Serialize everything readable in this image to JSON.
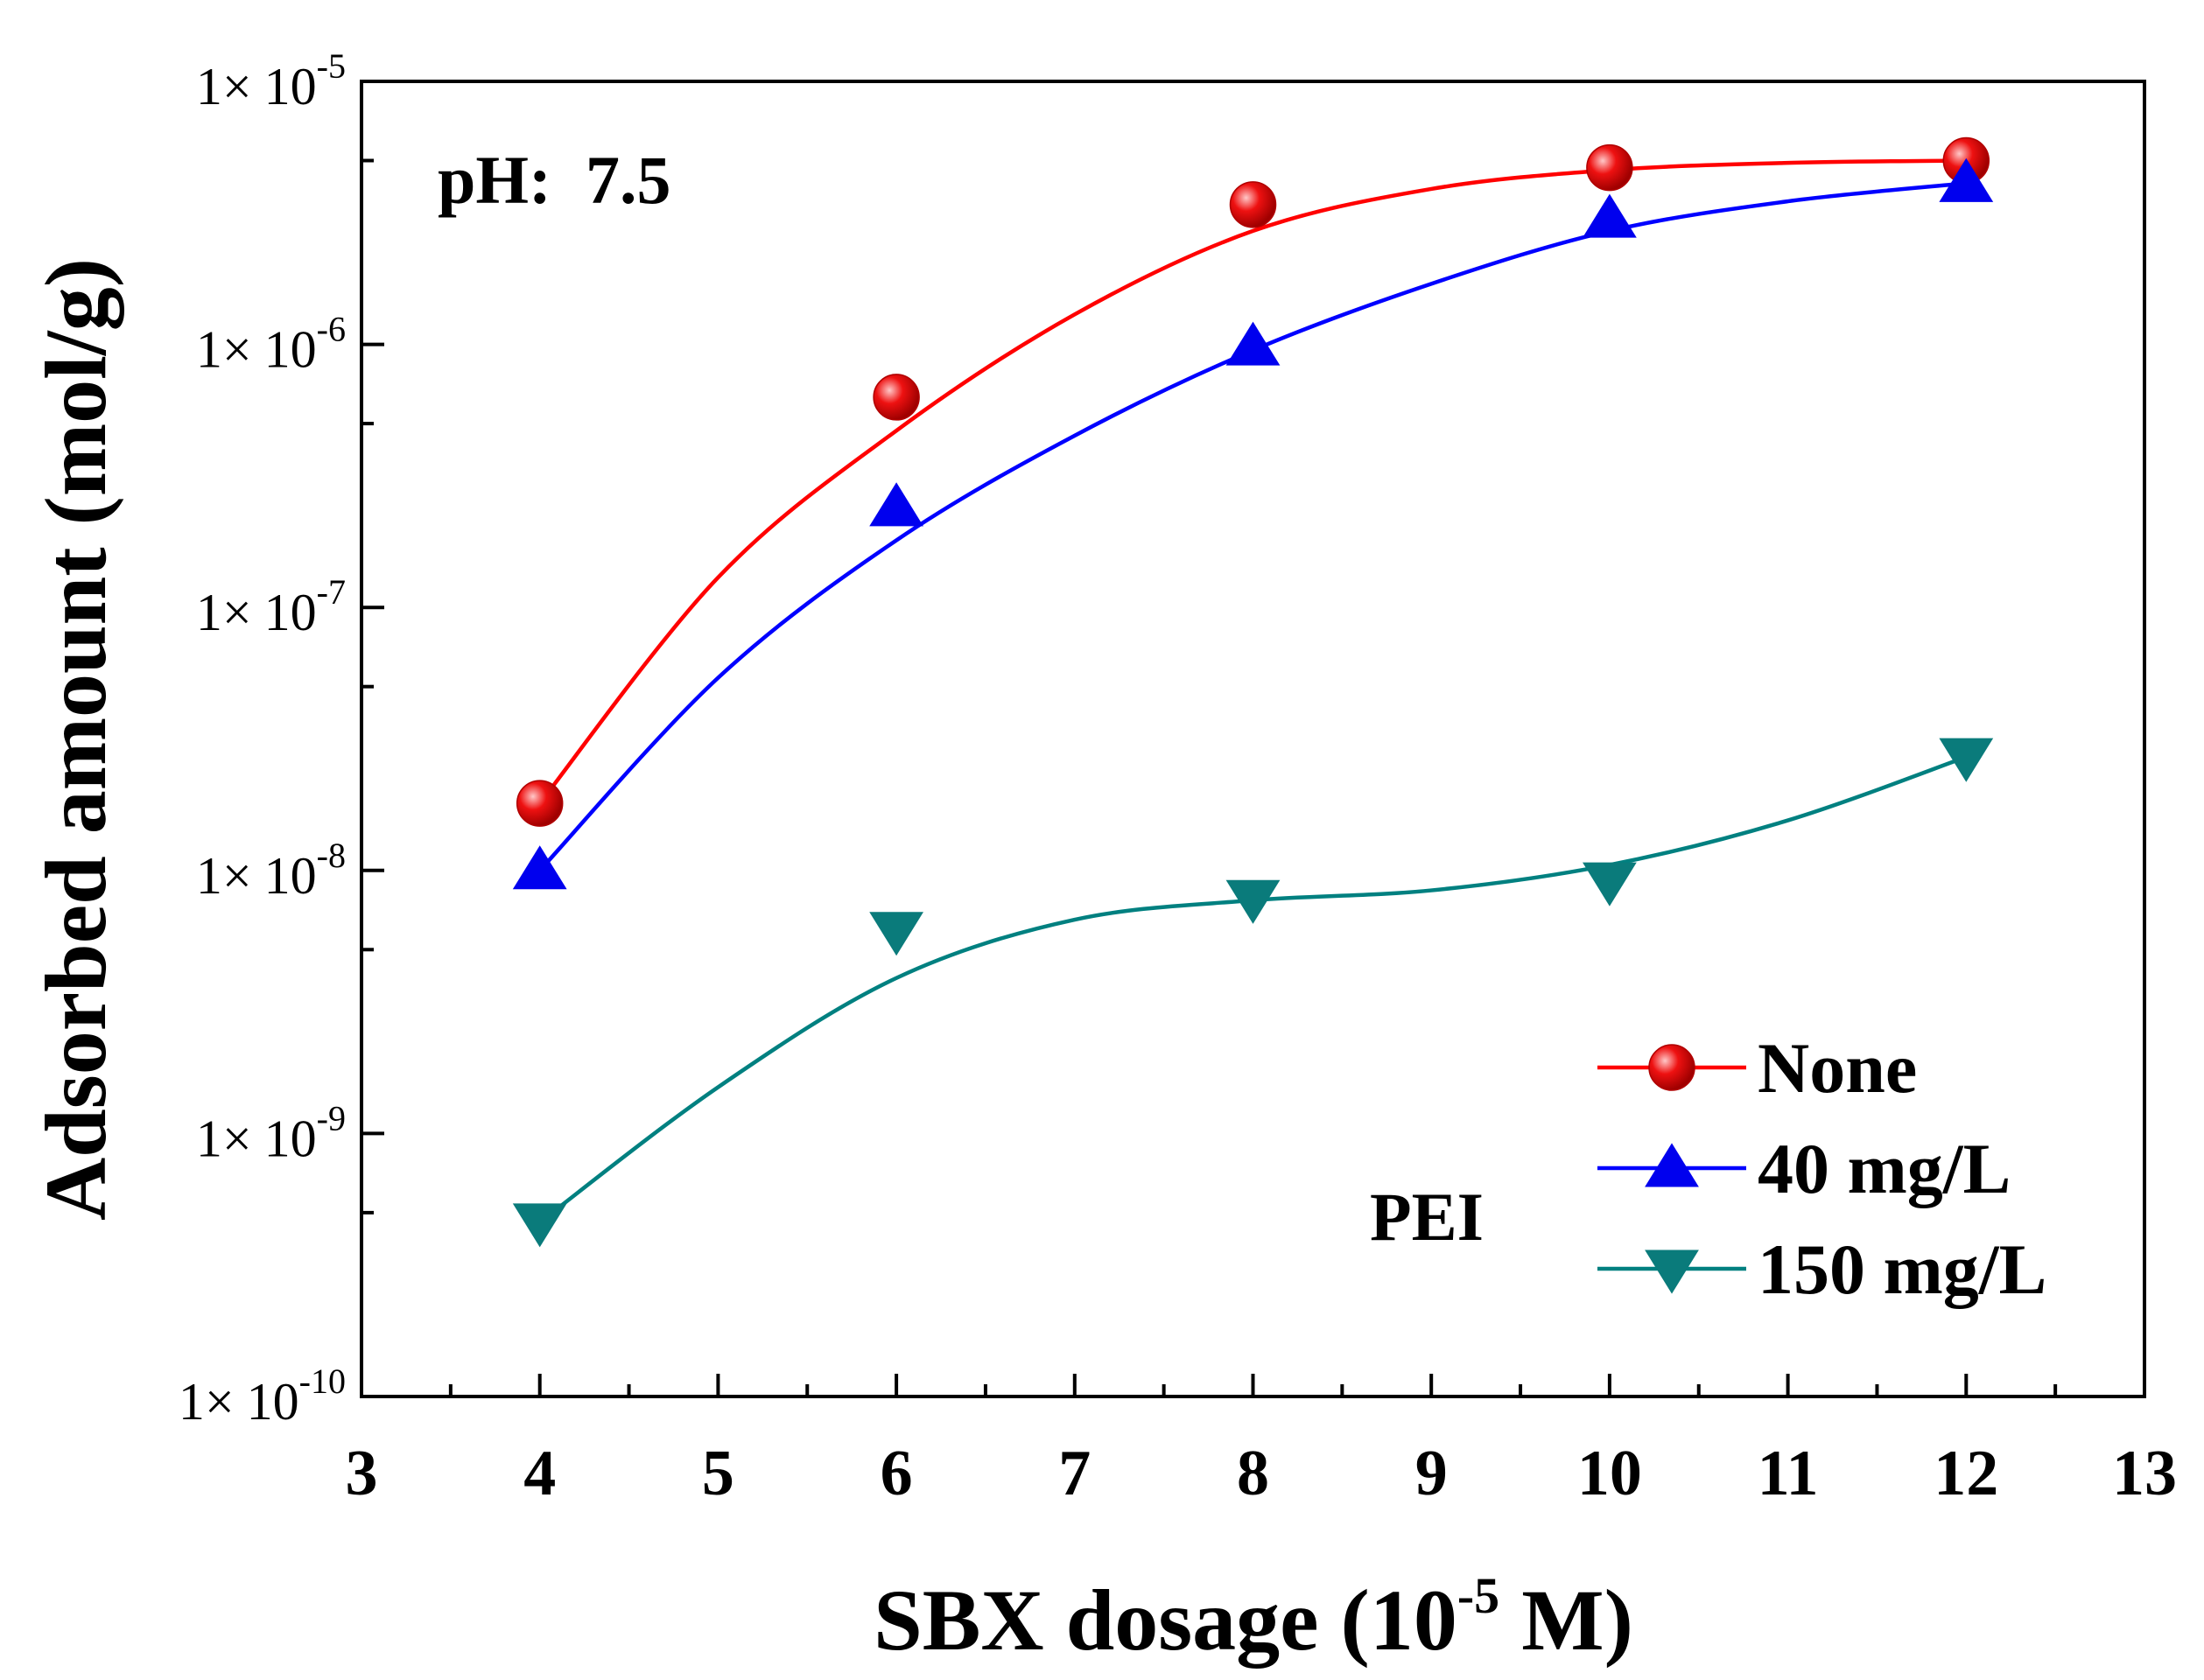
{
  "chart_data": {
    "type": "scatter",
    "title": "",
    "xlabel_main": "SBX dosage (10",
    "xlabel_sup": "-5",
    "xlabel_tail": " M)",
    "ylabel": "Adsorbed amount (mol/g)",
    "x_scale": "linear",
    "y_scale": "log",
    "xlim": [
      3,
      13
    ],
    "ylim": [
      1e-10,
      1e-05
    ],
    "x_ticks": [
      3,
      4,
      5,
      6,
      7,
      8,
      9,
      10,
      11,
      12,
      13
    ],
    "y_ticks": [
      {
        "value": 1e-10,
        "mantissa": "1×",
        "base": "10",
        "exp": "-10"
      },
      {
        "value": 1e-09,
        "mantissa": "1×",
        "base": "10",
        "exp": "-9"
      },
      {
        "value": 1e-08,
        "mantissa": "1×",
        "base": "10",
        "exp": "-8"
      },
      {
        "value": 1e-07,
        "mantissa": "1×",
        "base": "10",
        "exp": "-7"
      },
      {
        "value": 1e-06,
        "mantissa": "1×",
        "base": "10",
        "exp": "-6"
      },
      {
        "value": 1e-05,
        "mantissa": "1×",
        "base": "10",
        "exp": "-5"
      }
    ],
    "grid": false,
    "legend_position": "bottom-right",
    "annotations": [
      {
        "id": "ph-label",
        "text": "pH:  7.5"
      },
      {
        "id": "pei-label",
        "text": "PEI"
      }
    ],
    "series": [
      {
        "name": "None",
        "color": "#ff0000",
        "marker": "circle",
        "marker_color": "#ee1111",
        "x": [
          4,
          6,
          8,
          10,
          12
        ],
        "y": [
          1.8e-08,
          6.3e-07,
          3.4e-06,
          4.7e-06,
          5e-06
        ],
        "fit": [
          [
            4,
            1.8e-08
          ],
          [
            5,
            1.3e-07
          ],
          [
            6,
            4.7e-07
          ],
          [
            7,
            1.3e-06
          ],
          [
            8,
            2.7e-06
          ],
          [
            9,
            3.9e-06
          ],
          [
            10,
            4.6e-06
          ],
          [
            11,
            4.9e-06
          ],
          [
            12,
            5e-06
          ]
        ]
      },
      {
        "name": "40 mg/L",
        "color": "#0000ff",
        "marker": "triangle-up",
        "marker_color": "#0000ee",
        "x": [
          4,
          6,
          8,
          10,
          12
        ],
        "y": [
          1e-08,
          2.4e-07,
          9.8e-07,
          3e-06,
          4.1e-06
        ],
        "fit": [
          [
            4,
            1e-08
          ],
          [
            5,
            5.4e-08
          ],
          [
            6,
            1.8e-07
          ],
          [
            7,
            4.5e-07
          ],
          [
            8,
            9.5e-07
          ],
          [
            9,
            1.7e-06
          ],
          [
            10,
            2.7e-06
          ],
          [
            11,
            3.5e-06
          ],
          [
            12,
            4.1e-06
          ]
        ]
      },
      {
        "name": "150 mg/L",
        "color": "#008080",
        "marker": "triangle-down",
        "marker_color": "#0a7b7b",
        "x": [
          4,
          6,
          8,
          10,
          12
        ],
        "y": [
          4.6e-10,
          5.9e-09,
          7.8e-09,
          9.1e-09,
          2.7e-08
        ],
        "fit": [
          [
            4,
            4.6e-10
          ],
          [
            5,
            1.5e-09
          ],
          [
            6,
            3.9e-09
          ],
          [
            7,
            6.5e-09
          ],
          [
            8,
            7.7e-09
          ],
          [
            9,
            8.4e-09
          ],
          [
            10,
            1.05e-08
          ],
          [
            11,
            1.55e-08
          ],
          [
            12,
            2.7e-08
          ]
        ]
      }
    ]
  }
}
